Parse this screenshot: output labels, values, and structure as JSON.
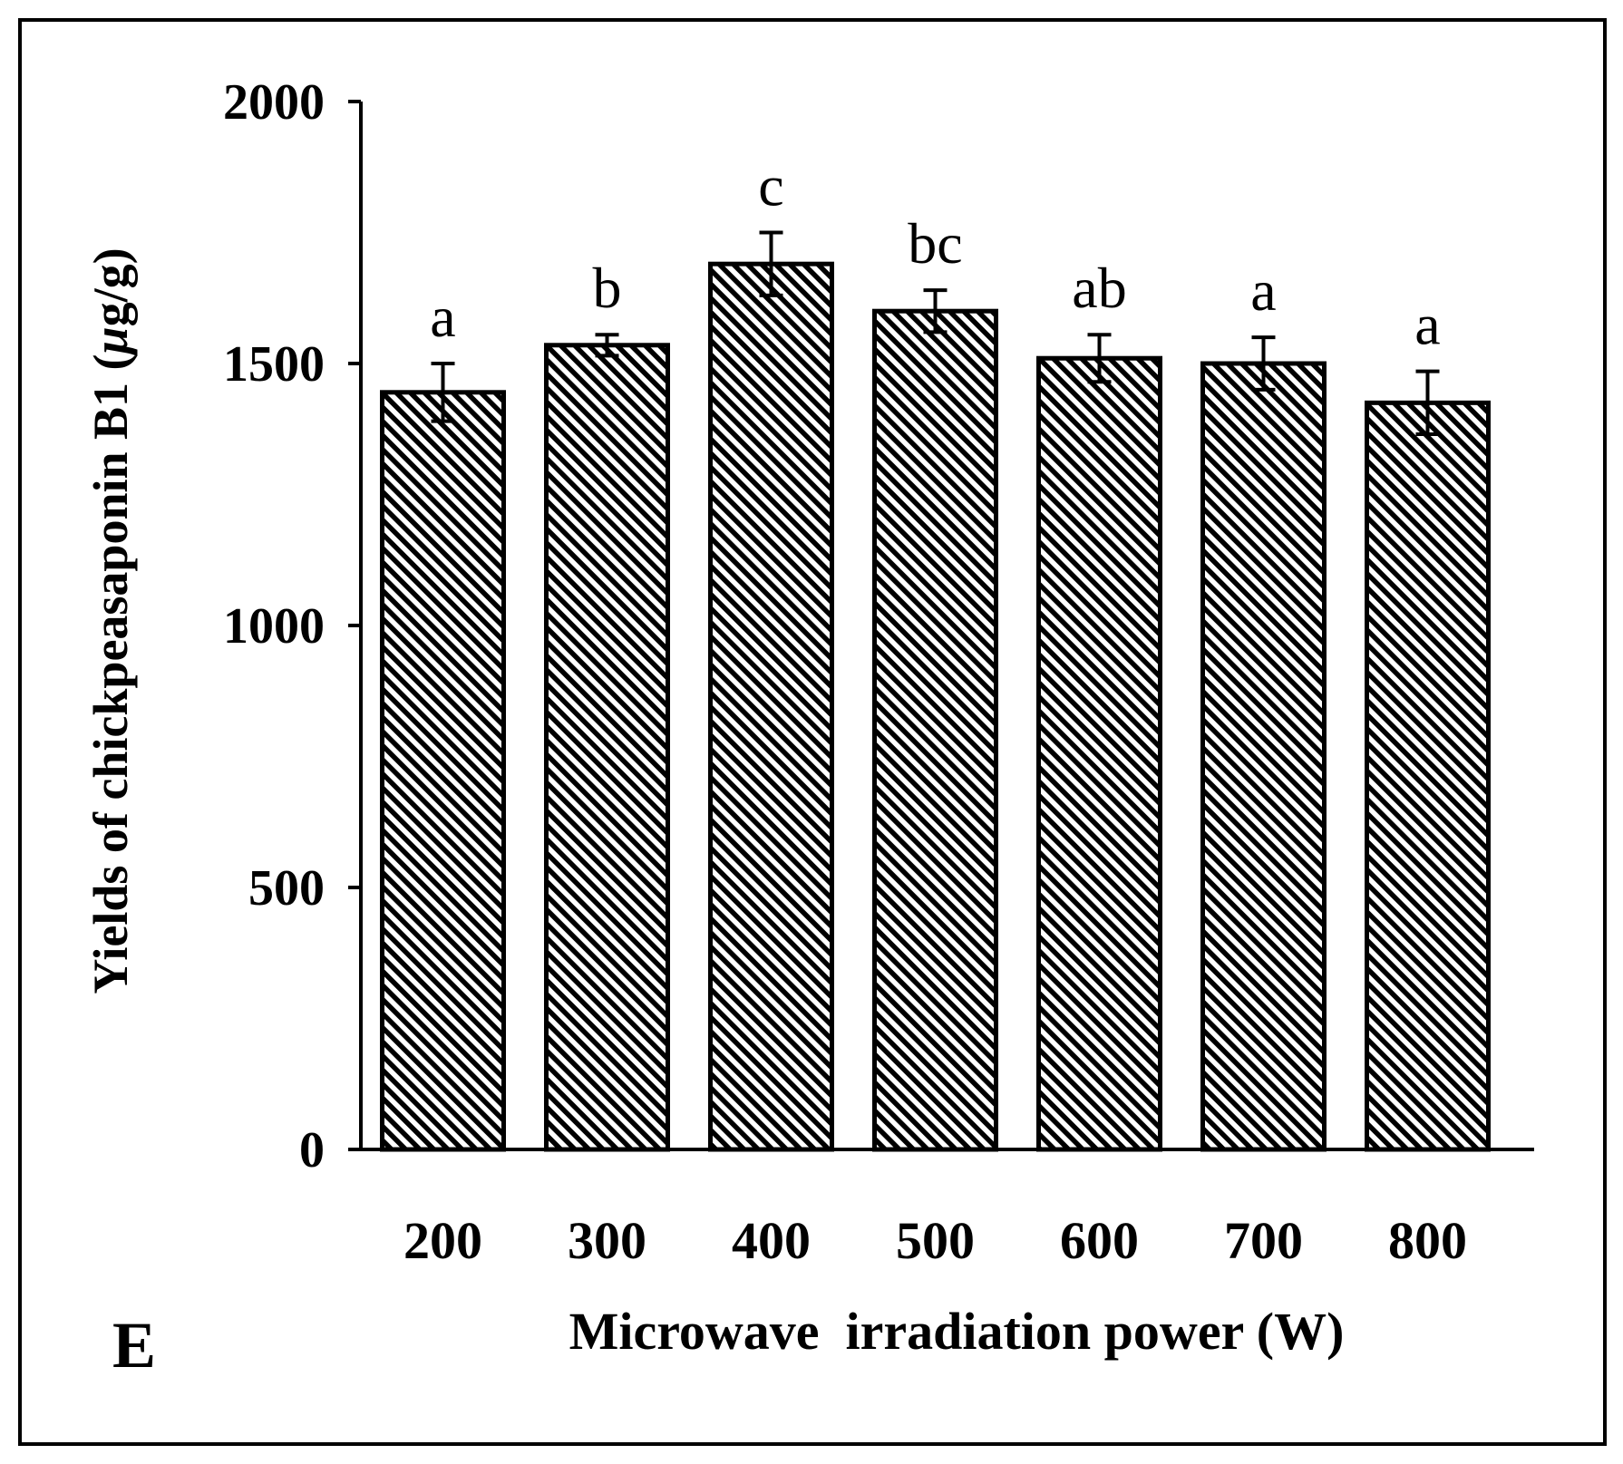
{
  "panel_label": "E",
  "chart_data": {
    "type": "bar",
    "title": "",
    "xlabel": "Microwave  irradiation power (W)",
    "ylabel_prefix": "Yields of chickpeasaponin B1 (",
    "ylabel_mu": "μ",
    "ylabel_suffix": "g/g)",
    "ylim": [
      0,
      2000
    ],
    "yticks": [
      0,
      500,
      1000,
      1500,
      2000
    ],
    "categories": [
      "200",
      "300",
      "400",
      "500",
      "600",
      "700",
      "800"
    ],
    "values": [
      1445,
      1535,
      1690,
      1600,
      1510,
      1500,
      1425
    ],
    "errors": [
      55,
      20,
      60,
      40,
      45,
      50,
      60
    ],
    "significance": [
      "a",
      "b",
      "c",
      "bc",
      "ab",
      "a",
      "a"
    ],
    "bar_fill": "diagonal-hatch",
    "colors": {
      "ink": "#000000",
      "background": "#ffffff"
    }
  }
}
